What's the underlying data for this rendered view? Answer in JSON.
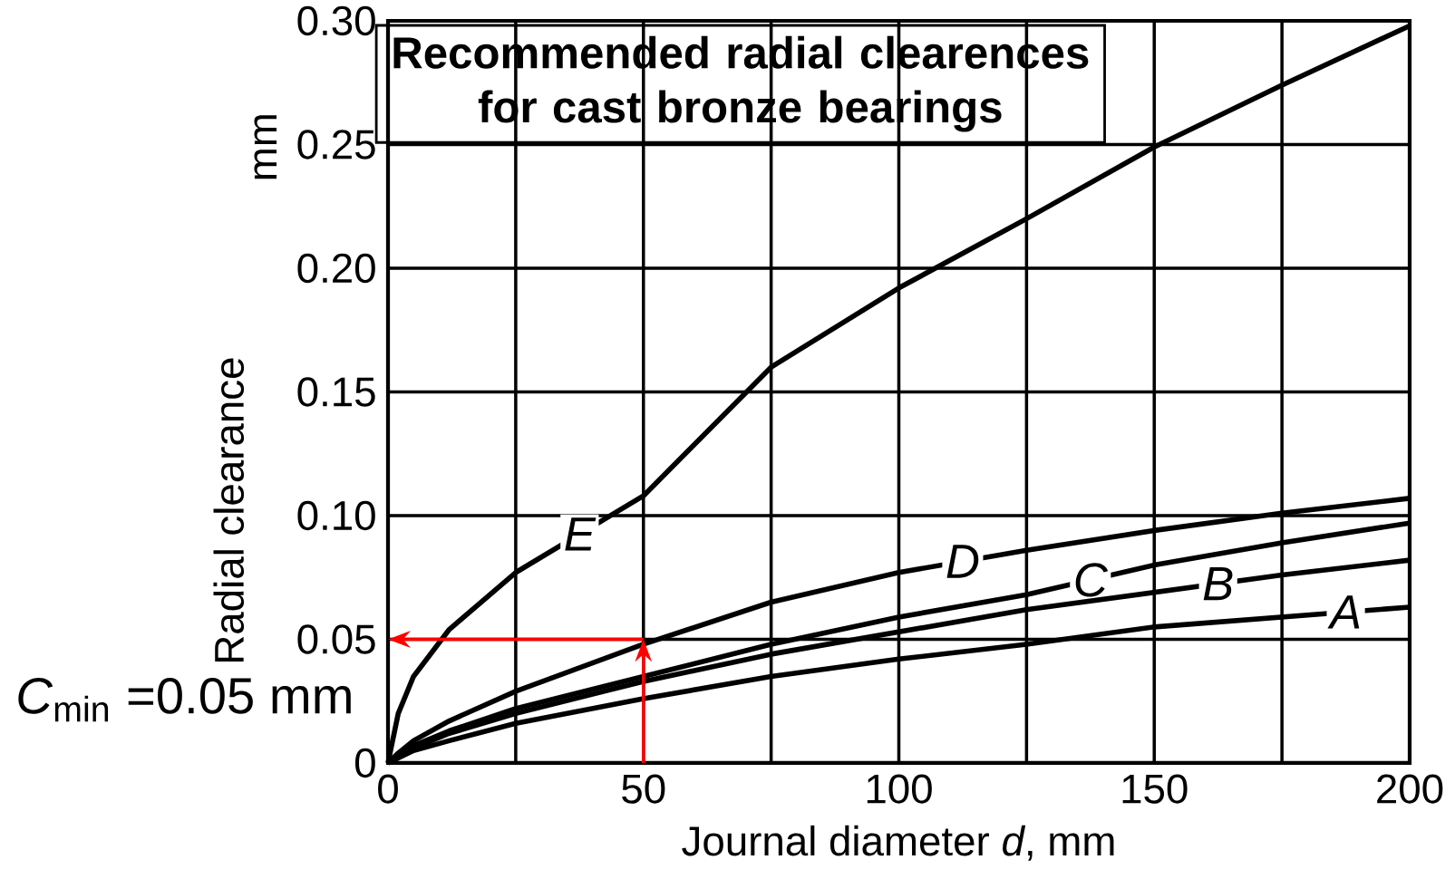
{
  "chart_data": {
    "type": "line",
    "title": "**Recommended radial clearences for cast bronze bearings**",
    "xlabel": "Journal diameter *d*, mm",
    "ylabel": "Radial clearance",
    "annotations": [
      "mm",
      {
        "text": "*C*$_{min}$ =0.05 mm",
        "x": 50,
        "y": 0.05
      }
    ],
    "x": [
      0,
      2,
      5,
      12,
      25,
      50,
      75,
      100,
      125,
      150,
      175,
      200
    ],
    "series": [
      {
        "name": "E",
        "color": "#000000",
        "values": [
          0,
          0.02,
          0.035,
          0.054,
          0.077,
          0.108,
          0.16,
          0.192,
          0.22,
          0.249,
          0.274,
          0.298
        ]
      },
      {
        "name": "D",
        "color": "#000000",
        "values": [
          0,
          0.004,
          0.009,
          0.017,
          0.029,
          0.048,
          0.065,
          0.077,
          0.086,
          0.094,
          0.101,
          0.107
        ]
      },
      {
        "name": "C",
        "color": "#000000",
        "values": [
          0,
          0.003,
          0.007,
          0.013,
          0.022,
          0.035,
          0.048,
          0.059,
          0.068,
          0.08,
          0.089,
          0.097
        ]
      },
      {
        "name": "B",
        "color": "#000000",
        "values": [
          0,
          0.003,
          0.006,
          0.012,
          0.02,
          0.033,
          0.044,
          0.053,
          0.062,
          0.069,
          0.076,
          0.082
        ]
      },
      {
        "name": "A",
        "color": "#000000",
        "values": [
          0,
          0.002,
          0.005,
          0.009,
          0.016,
          0.026,
          0.035,
          0.042,
          0.048,
          0.055,
          0.059,
          0.063
        ]
      }
    ],
    "xlim": [
      0,
      200
    ],
    "ylim": [
      0,
      0.3
    ],
    "xticks": [
      0,
      {
        "value": 25,
        "label": null
      },
      50,
      {
        "value": 75,
        "label": null
      },
      100,
      {
        "value": 125,
        "label": null
      },
      150,
      {
        "value": 175,
        "label": null
      },
      200
    ],
    "yticks": [
      0,
      0.05,
      {
        "value": 0.1,
        "label": "0.10"
      },
      0.15,
      {
        "value": 0.2,
        "label": "0.20"
      },
      0.25,
      {
        "value": 0.3,
        "label": "0.30"
      }
    ],
    "grid": true,
    "marker": "none",
    "line_style": "solid"
  }
}
